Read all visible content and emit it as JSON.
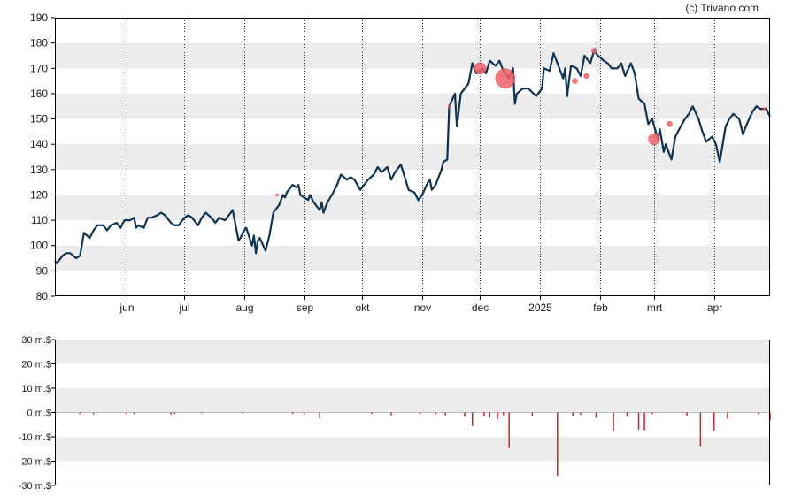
{
  "copyright": "(c) Trivano.com",
  "colors": {
    "background": "#ffffff",
    "band": "#ececec",
    "axis": "#000000",
    "grid_vertical": "#333333",
    "price_line": "#0e3352",
    "trade_marker": "#f0606a",
    "volume_bar": "#d31f2d"
  },
  "chart_data": [
    {
      "type": "line",
      "title": "",
      "xlabel": "",
      "ylabel": "",
      "ylim": [
        80,
        190
      ],
      "yticks": [
        80,
        90,
        100,
        110,
        120,
        130,
        140,
        150,
        160,
        170,
        180,
        190
      ],
      "x_range": [
        "2024-04-25",
        "2025-04-30"
      ],
      "x_ticks": [
        {
          "label": "jun",
          "date": "2024-06-01"
        },
        {
          "label": "jul",
          "date": "2024-07-01"
        },
        {
          "label": "aug",
          "date": "2024-08-01"
        },
        {
          "label": "sep",
          "date": "2024-09-01"
        },
        {
          "label": "okt",
          "date": "2024-10-01"
        },
        {
          "label": "nov",
          "date": "2024-11-01"
        },
        {
          "label": "dec",
          "date": "2024-12-01"
        },
        {
          "label": "2025",
          "date": "2025-01-01"
        },
        {
          "label": "feb",
          "date": "2025-02-01"
        },
        {
          "label": "mrt",
          "date": "2025-03-01"
        },
        {
          "label": "apr",
          "date": "2025-04-01"
        }
      ],
      "grid": "horizontal bands + dotted vertical lines at month starts",
      "series": [
        {
          "points": [
            [
              "2024-04-25",
              94
            ],
            [
              "2024-04-26",
              93
            ],
            [
              "2024-04-29",
              96
            ],
            [
              "2024-05-01",
              97
            ],
            [
              "2024-05-03",
              97
            ],
            [
              "2024-05-06",
              95
            ],
            [
              "2024-05-08",
              96
            ],
            [
              "2024-05-10",
              105
            ],
            [
              "2024-05-13",
              103
            ],
            [
              "2024-05-15",
              106
            ],
            [
              "2024-05-17",
              108
            ],
            [
              "2024-05-20",
              108
            ],
            [
              "2024-05-22",
              106
            ],
            [
              "2024-05-24",
              108
            ],
            [
              "2024-05-27",
              109
            ],
            [
              "2024-05-29",
              107
            ],
            [
              "2024-05-31",
              110
            ],
            [
              "2024-06-03",
              110
            ],
            [
              "2024-06-05",
              111
            ],
            [
              "2024-06-06",
              107
            ],
            [
              "2024-06-07",
              108
            ],
            [
              "2024-06-10",
              107
            ],
            [
              "2024-06-12",
              111
            ],
            [
              "2024-06-14",
              111
            ],
            [
              "2024-06-17",
              112
            ],
            [
              "2024-06-19",
              113
            ],
            [
              "2024-06-21",
              112
            ],
            [
              "2024-06-24",
              109
            ],
            [
              "2024-06-26",
              108
            ],
            [
              "2024-06-28",
              108
            ],
            [
              "2024-07-01",
              111
            ],
            [
              "2024-07-03",
              112
            ],
            [
              "2024-07-05",
              111
            ],
            [
              "2024-07-08",
              108
            ],
            [
              "2024-07-10",
              111
            ],
            [
              "2024-07-12",
              113
            ],
            [
              "2024-07-15",
              111
            ],
            [
              "2024-07-17",
              109
            ],
            [
              "2024-07-19",
              111
            ],
            [
              "2024-07-22",
              110
            ],
            [
              "2024-07-24",
              112
            ],
            [
              "2024-07-26",
              114
            ],
            [
              "2024-07-29",
              102
            ],
            [
              "2024-07-30",
              103
            ],
            [
              "2024-08-01",
              106
            ],
            [
              "2024-08-02",
              107
            ],
            [
              "2024-08-05",
              100
            ],
            [
              "2024-08-06",
              104
            ],
            [
              "2024-08-07",
              97
            ],
            [
              "2024-08-08",
              102
            ],
            [
              "2024-08-09",
              103
            ],
            [
              "2024-08-12",
              98
            ],
            [
              "2024-08-13",
              101
            ],
            [
              "2024-08-14",
              104
            ],
            [
              "2024-08-16",
              113
            ],
            [
              "2024-08-19",
              116
            ],
            [
              "2024-08-21",
              120
            ],
            [
              "2024-08-22",
              119
            ],
            [
              "2024-08-23",
              121
            ],
            [
              "2024-08-26",
              124
            ],
            [
              "2024-08-28",
              123
            ],
            [
              "2024-08-29",
              124
            ],
            [
              "2024-08-30",
              120
            ],
            [
              "2024-09-03",
              118
            ],
            [
              "2024-09-04",
              120
            ],
            [
              "2024-09-06",
              117
            ],
            [
              "2024-09-09",
              114
            ],
            [
              "2024-09-10",
              117
            ],
            [
              "2024-09-11",
              113
            ],
            [
              "2024-09-13",
              117
            ],
            [
              "2024-09-16",
              121
            ],
            [
              "2024-09-18",
              124
            ],
            [
              "2024-09-20",
              128
            ],
            [
              "2024-09-23",
              126
            ],
            [
              "2024-09-25",
              127
            ],
            [
              "2024-09-27",
              126
            ],
            [
              "2024-09-30",
              122
            ],
            [
              "2024-10-02",
              124
            ],
            [
              "2024-10-04",
              126
            ],
            [
              "2024-10-07",
              128
            ],
            [
              "2024-10-09",
              131
            ],
            [
              "2024-10-11",
              129
            ],
            [
              "2024-10-14",
              131
            ],
            [
              "2024-10-16",
              126
            ],
            [
              "2024-10-18",
              129
            ],
            [
              "2024-10-21",
              132
            ],
            [
              "2024-10-23",
              127
            ],
            [
              "2024-10-25",
              122
            ],
            [
              "2024-10-28",
              121
            ],
            [
              "2024-10-30",
              118
            ],
            [
              "2024-11-01",
              120
            ],
            [
              "2024-11-04",
              125
            ],
            [
              "2024-11-05",
              126
            ],
            [
              "2024-11-06",
              122
            ],
            [
              "2024-11-08",
              124
            ],
            [
              "2024-11-11",
              130
            ],
            [
              "2024-11-12",
              133
            ],
            [
              "2024-11-14",
              134
            ],
            [
              "2024-11-15",
              155
            ],
            [
              "2024-11-18",
              160
            ],
            [
              "2024-11-19",
              147
            ],
            [
              "2024-11-21",
              160
            ],
            [
              "2024-11-25",
              164
            ],
            [
              "2024-11-27",
              172
            ],
            [
              "2024-11-29",
              168
            ],
            [
              "2024-12-02",
              170
            ],
            [
              "2024-12-04",
              168
            ],
            [
              "2024-12-06",
              173
            ],
            [
              "2024-12-09",
              171
            ],
            [
              "2024-12-11",
              173
            ],
            [
              "2024-12-13",
              169
            ],
            [
              "2024-12-16",
              166
            ],
            [
              "2024-12-18",
              170
            ],
            [
              "2024-12-19",
              156
            ],
            [
              "2024-12-20",
              160
            ],
            [
              "2024-12-23",
              162
            ],
            [
              "2024-12-26",
              162
            ],
            [
              "2024-12-30",
              159
            ],
            [
              "2025-01-02",
              162
            ],
            [
              "2025-01-03",
              170
            ],
            [
              "2025-01-06",
              169
            ],
            [
              "2025-01-08",
              176
            ],
            [
              "2025-01-10",
              172
            ],
            [
              "2025-01-13",
              166
            ],
            [
              "2025-01-14",
              170
            ],
            [
              "2025-01-15",
              159
            ],
            [
              "2025-01-17",
              171
            ],
            [
              "2025-01-20",
              170
            ],
            [
              "2025-01-22",
              167
            ],
            [
              "2025-01-24",
              175
            ],
            [
              "2025-01-27",
              172
            ],
            [
              "2025-01-29",
              177
            ],
            [
              "2025-01-31",
              175
            ],
            [
              "2025-02-03",
              173
            ],
            [
              "2025-02-05",
              172
            ],
            [
              "2025-02-07",
              170
            ],
            [
              "2025-02-10",
              170
            ],
            [
              "2025-02-12",
              172
            ],
            [
              "2025-02-14",
              167
            ],
            [
              "2025-02-17",
              172
            ],
            [
              "2025-02-19",
              168
            ],
            [
              "2025-02-21",
              158
            ],
            [
              "2025-02-24",
              156
            ],
            [
              "2025-02-26",
              148
            ],
            [
              "2025-02-28",
              150
            ],
            [
              "2025-03-03",
              142
            ],
            [
              "2025-03-04",
              146
            ],
            [
              "2025-03-06",
              137
            ],
            [
              "2025-03-07",
              140
            ],
            [
              "2025-03-10",
              134
            ],
            [
              "2025-03-12",
              143
            ],
            [
              "2025-03-14",
              146
            ],
            [
              "2025-03-17",
              150
            ],
            [
              "2025-03-19",
              152
            ],
            [
              "2025-03-21",
              155
            ],
            [
              "2025-03-24",
              150
            ],
            [
              "2025-03-26",
              145
            ],
            [
              "2025-03-28",
              141
            ],
            [
              "2025-03-31",
              143
            ],
            [
              "2025-04-02",
              140
            ],
            [
              "2025-04-04",
              133
            ],
            [
              "2025-04-07",
              147
            ],
            [
              "2025-04-09",
              150
            ],
            [
              "2025-04-11",
              152
            ],
            [
              "2025-04-14",
              150
            ],
            [
              "2025-04-16",
              144
            ],
            [
              "2025-04-18",
              148
            ],
            [
              "2025-04-21",
              153
            ],
            [
              "2025-04-23",
              155
            ],
            [
              "2025-04-25",
              154
            ],
            [
              "2025-04-28",
              154
            ],
            [
              "2025-04-30",
              151
            ]
          ]
        }
      ],
      "markers": [
        {
          "date": "2024-08-18",
          "value": 120,
          "size": "tiny"
        },
        {
          "date": "2024-11-15",
          "value": 155,
          "size": "tiny"
        },
        {
          "date": "2024-12-01",
          "value": 170,
          "size": "medium"
        },
        {
          "date": "2024-12-14",
          "value": 166,
          "size": "large"
        },
        {
          "date": "2025-01-19",
          "value": 165,
          "size": "small"
        },
        {
          "date": "2025-01-25",
          "value": 167,
          "size": "small"
        },
        {
          "date": "2025-01-29",
          "value": 177,
          "size": "small"
        },
        {
          "date": "2025-03-01",
          "value": 142,
          "size": "medium"
        },
        {
          "date": "2025-03-09",
          "value": 148,
          "size": "small"
        },
        {
          "date": "2025-04-27",
          "value": 154,
          "size": "tiny"
        }
      ]
    },
    {
      "type": "bar",
      "title": "",
      "xlabel": "",
      "ylabel": "",
      "ylim": [
        -30,
        30
      ],
      "yticks": [
        {
          "value": 30,
          "label": "30 m.$"
        },
        {
          "value": 20,
          "label": "20 m.$"
        },
        {
          "value": 10,
          "label": "10 m.$"
        },
        {
          "value": 0,
          "label": "0 m.$"
        },
        {
          "value": -10,
          "label": "-10 m.$"
        },
        {
          "value": -20,
          "label": "-20 m.$"
        },
        {
          "value": -30,
          "label": "-30 m.$"
        }
      ],
      "x_range": [
        "2024-04-25",
        "2025-04-30"
      ],
      "grid": "horizontal bands",
      "series": [
        {
          "points": [
            [
              "2024-05-08",
              -0.6
            ],
            [
              "2024-05-15",
              -0.7
            ],
            [
              "2024-06-01",
              -0.6
            ],
            [
              "2024-06-05",
              -0.6
            ],
            [
              "2024-06-24",
              -0.8
            ],
            [
              "2024-06-26",
              -0.6
            ],
            [
              "2024-07-10",
              -0.4
            ],
            [
              "2024-07-31",
              -0.4
            ],
            [
              "2024-08-26",
              -0.6
            ],
            [
              "2024-09-01",
              -0.8
            ],
            [
              "2024-09-09",
              -2.3
            ],
            [
              "2024-10-06",
              -0.6
            ],
            [
              "2024-10-16",
              -1.2
            ],
            [
              "2024-10-31",
              -0.6
            ],
            [
              "2024-11-08",
              -0.8
            ],
            [
              "2024-11-13",
              -1.2
            ],
            [
              "2024-11-23",
              -1.7
            ],
            [
              "2024-11-27",
              -5.6
            ],
            [
              "2024-12-03",
              -1.6
            ],
            [
              "2024-12-06",
              -2.1
            ],
            [
              "2024-12-10",
              -2.8
            ],
            [
              "2024-12-13",
              -1.1
            ],
            [
              "2024-12-16",
              -14.6
            ],
            [
              "2024-12-28",
              -1.6
            ],
            [
              "2025-01-10",
              -26.1
            ],
            [
              "2025-01-18",
              -1.4
            ],
            [
              "2025-01-22",
              -0.9
            ],
            [
              "2025-01-30",
              -2.2
            ],
            [
              "2025-02-08",
              -7.6
            ],
            [
              "2025-02-15",
              -1.7
            ],
            [
              "2025-02-21",
              -7.1
            ],
            [
              "2025-02-24",
              -7.4
            ],
            [
              "2025-02-28",
              -0.6
            ],
            [
              "2025-03-18",
              -1.3
            ],
            [
              "2025-03-25",
              -13.8
            ],
            [
              "2025-04-01",
              -7.5
            ],
            [
              "2025-04-08",
              -2.6
            ],
            [
              "2025-04-24",
              -0.7
            ],
            [
              "2025-04-30",
              -3.1
            ]
          ]
        }
      ]
    }
  ]
}
